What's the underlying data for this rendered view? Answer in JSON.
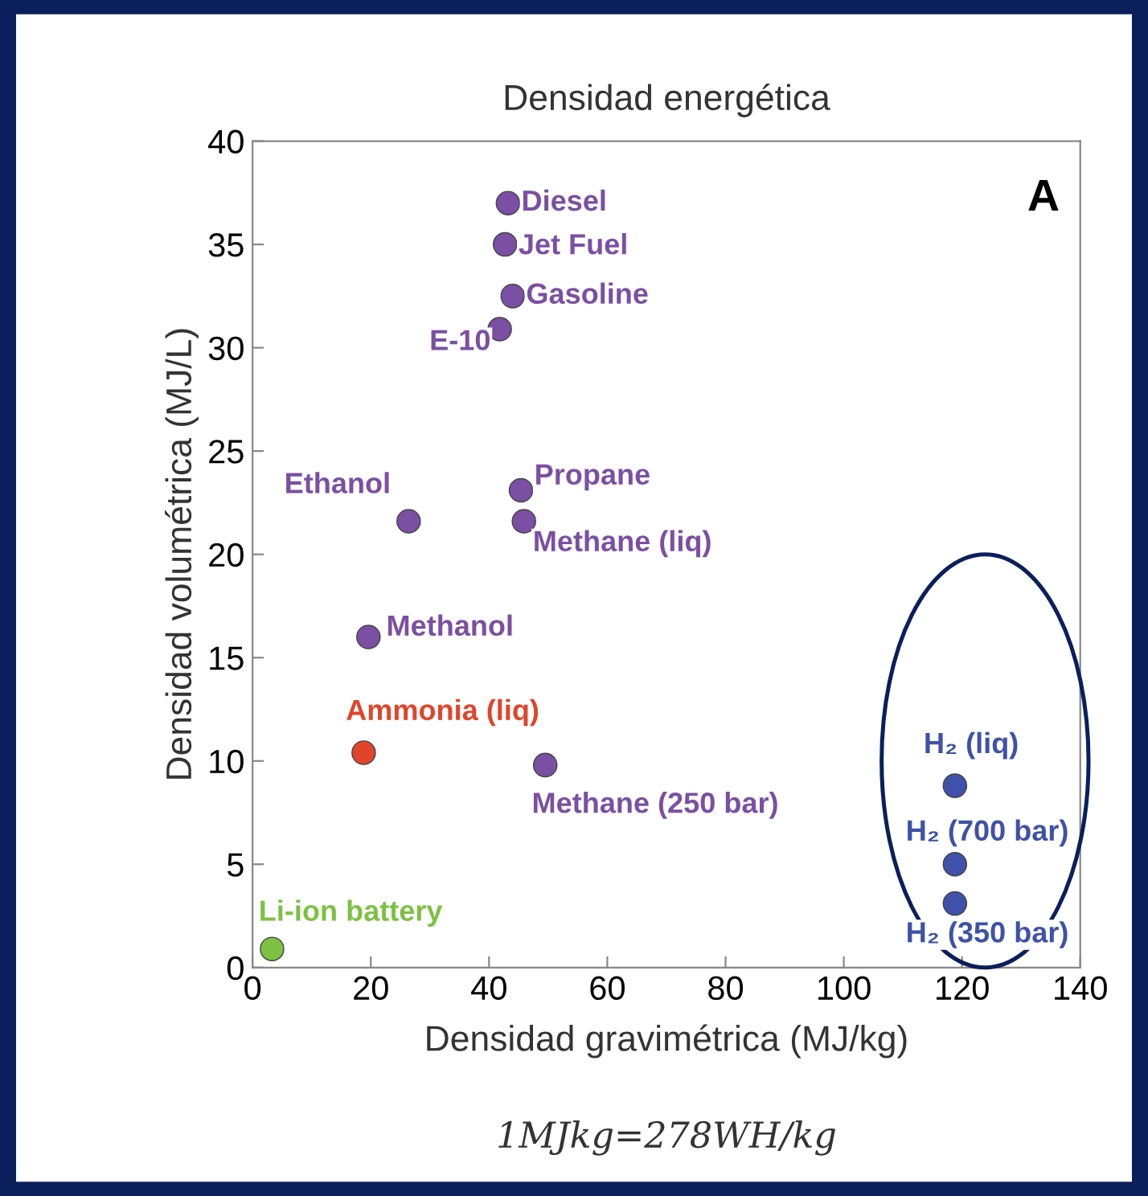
{
  "chart_data": {
    "type": "scatter",
    "title": "Densidad energética",
    "xlabel": "Densidad gravimétrica (MJ/kg)",
    "ylabel": "Densidad volumétrica (MJ/L)",
    "xlim": [
      0,
      140
    ],
    "xticks": [
      0,
      20,
      40,
      60,
      80,
      100,
      120,
      140
    ],
    "ylim": [
      0,
      40
    ],
    "yticks": [
      0,
      5,
      10,
      15,
      20,
      25,
      30,
      35,
      40
    ],
    "grid": false,
    "legend": false,
    "marker": "circle",
    "annotations": [
      "A",
      "1MJkg=278WH/kg"
    ],
    "series": [
      {
        "name": "Diesel",
        "color": "#7b4fa3",
        "x": [
          43.2
        ],
        "values": [
          37.0
        ]
      },
      {
        "name": "Jet Fuel",
        "color": "#7b4fa3",
        "x": [
          42.7
        ],
        "values": [
          35.0
        ]
      },
      {
        "name": "Gasoline",
        "color": "#7b4fa3",
        "x": [
          44.0
        ],
        "values": [
          32.5
        ]
      },
      {
        "name": "E-10",
        "color": "#7b4fa3",
        "x": [
          41.8
        ],
        "values": [
          30.9
        ]
      },
      {
        "name": "Ethanol",
        "color": "#7b4fa3",
        "x": [
          26.4
        ],
        "values": [
          21.6
        ]
      },
      {
        "name": "Propane",
        "color": "#7b4fa3",
        "x": [
          45.4
        ],
        "values": [
          23.1
        ]
      },
      {
        "name": "Methane (liq)",
        "color": "#7b4fa3",
        "x": [
          45.9
        ],
        "values": [
          21.6
        ]
      },
      {
        "name": "Methanol",
        "color": "#7b4fa3",
        "x": [
          19.6
        ],
        "values": [
          16.0
        ]
      },
      {
        "name": "Ammonia (liq)",
        "color": "#e0452a",
        "x": [
          18.8
        ],
        "values": [
          10.4
        ]
      },
      {
        "name": "Methane (250 bar)",
        "color": "#7b4fa3",
        "x": [
          49.5
        ],
        "values": [
          9.8
        ]
      },
      {
        "name": "H₂ (liq)",
        "color": "#3f51a8",
        "x": [
          118.8
        ],
        "values": [
          8.8
        ]
      },
      {
        "name": "H₂ (700 bar)",
        "color": "#3f51a8",
        "x": [
          118.8
        ],
        "values": [
          5.0
        ]
      },
      {
        "name": "H₂ (350 bar)",
        "color": "#3f51a8",
        "x": [
          118.8
        ],
        "values": [
          3.1
        ]
      },
      {
        "name": "Li-ion battery",
        "color": "#7dc142",
        "x": [
          3.3
        ],
        "values": [
          0.9
        ]
      }
    ]
  }
}
